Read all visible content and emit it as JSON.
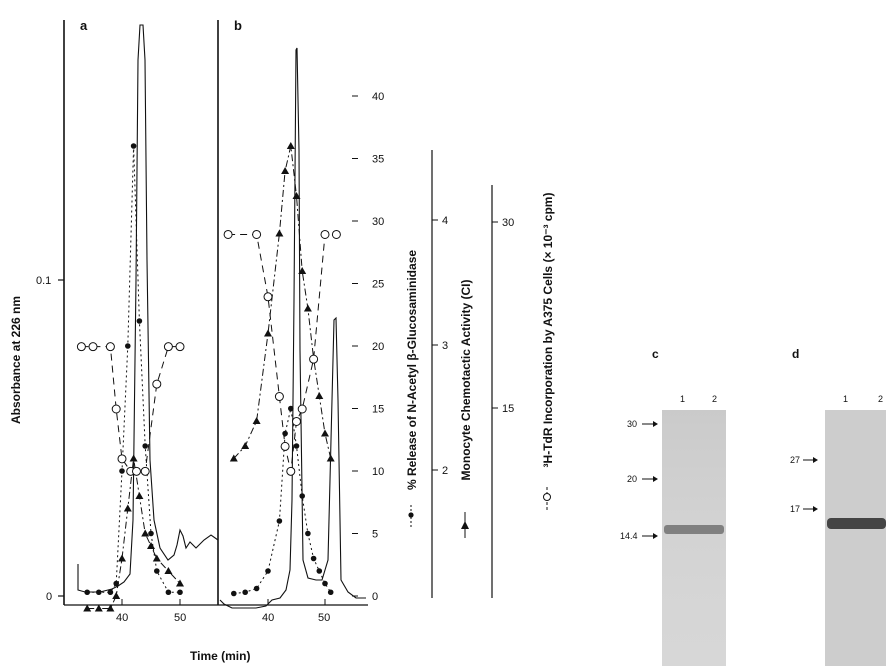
{
  "panels": {
    "a": "a",
    "b": "b",
    "c": "c",
    "d": "d"
  },
  "axes": {
    "left_ylabel": "Absorbance at 226 nm",
    "left_ticks": [
      "0.1",
      "0"
    ],
    "xlabel": "Time (min)",
    "x_ticks_a": [
      "40",
      "50"
    ],
    "x_ticks_b": [
      "40",
      "50"
    ],
    "glucosaminidase_label": "% Release of N-Acetyl β-Glucosaminidase",
    "glucosaminidase_ticks": [
      "40",
      "35",
      "30",
      "25",
      "20",
      "15",
      "10",
      "5",
      "0"
    ],
    "chemotactic_label": "Monocyte Chemotactic Activity (CI)",
    "chemotactic_ticks": [
      "4",
      "3",
      "2"
    ],
    "thymidine_label": "³H-TdR Incorporation by A375 Cells (× 10⁻³ cpm)",
    "thymidine_ticks": [
      "30",
      "15"
    ]
  },
  "gels": {
    "c": {
      "lanes": [
        "1",
        "2"
      ],
      "markers": [
        "30",
        "20",
        "14.4"
      ]
    },
    "d": {
      "lanes": [
        "1",
        "2"
      ],
      "markers": [
        "27",
        "17"
      ]
    }
  },
  "chart_data": [
    {
      "type": "line",
      "panel": "a",
      "xlabel": "Time (min)",
      "ylabel": "Absorbance at 226 nm",
      "xlim": [
        32,
        56
      ],
      "ylim": [
        0,
        0.165
      ],
      "series": [
        {
          "marker": "closed-circle",
          "x": [
            34,
            36,
            38,
            39,
            40,
            41,
            42,
            43,
            44,
            45,
            46,
            48,
            50
          ],
          "y": [
            0.3,
            0.3,
            0.3,
            1,
            10,
            20,
            36,
            22,
            12,
            5,
            2,
            0.3,
            0.3
          ]
        },
        {
          "marker": "closed-triangle",
          "x": [
            34,
            36,
            38,
            39,
            40,
            41,
            42,
            43,
            44,
            45,
            46,
            48,
            50
          ],
          "y": [
            0.2,
            0.2,
            0.2,
            0.3,
            0.6,
            1.0,
            1.4,
            1.1,
            0.8,
            0.7,
            0.6,
            0.5,
            0.4
          ]
        },
        {
          "marker": "open-circle",
          "x": [
            33,
            35,
            38,
            39,
            40,
            41.5,
            42.5,
            44,
            46,
            48,
            50
          ],
          "y": [
            20,
            20,
            20,
            15,
            11,
            10,
            10,
            10,
            17,
            20,
            20
          ]
        }
      ]
    },
    {
      "type": "line",
      "panel": "b",
      "xlabel": "Time (min)",
      "xlim": [
        32,
        58
      ],
      "series": [
        {
          "marker": "closed-circle",
          "x": [
            34,
            36,
            38,
            40,
            42,
            43,
            44,
            45,
            46,
            47,
            48,
            49,
            50,
            51
          ],
          "y": [
            0.2,
            0.3,
            0.6,
            2,
            6,
            13,
            15,
            12,
            8,
            5,
            3,
            2,
            1,
            0.3
          ]
        },
        {
          "marker": "closed-triangle",
          "x": [
            34,
            36,
            38,
            40,
            42,
            43,
            44,
            45,
            46,
            47,
            48,
            49,
            50,
            51
          ],
          "y": [
            1.4,
            1.5,
            1.7,
            2.4,
            3.2,
            3.7,
            3.9,
            3.5,
            2.9,
            2.6,
            2.2,
            1.9,
            1.6,
            1.4
          ]
        },
        {
          "marker": "open-circle",
          "x": [
            33,
            38,
            40,
            42,
            43,
            44,
            45,
            46,
            48,
            50,
            52
          ],
          "y": [
            29,
            29,
            24,
            16,
            12,
            10,
            14,
            15,
            19,
            29,
            29
          ]
        }
      ]
    }
  ]
}
